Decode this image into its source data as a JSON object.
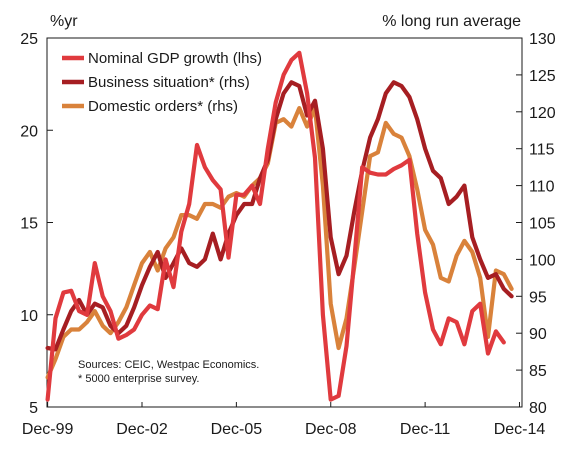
{
  "chart_data": {
    "type": "line",
    "left_axis_unit": "%yr",
    "right_axis_unit": "% long run average",
    "x_tick_labels": [
      "Dec-99",
      "Dec-02",
      "Dec-05",
      "Dec-08",
      "Dec-11",
      "Dec-14"
    ],
    "x_tick_years": [
      1999.92,
      2002.92,
      2005.92,
      2008.92,
      2011.92,
      2014.92
    ],
    "xlim": [
      1999.9,
      2015.0
    ],
    "left_ylim": [
      5,
      25
    ],
    "left_yticks": [
      5,
      10,
      15,
      20,
      25
    ],
    "right_ylim": [
      80,
      130
    ],
    "right_yticks": [
      80,
      85,
      90,
      95,
      100,
      105,
      110,
      115,
      120,
      125,
      130
    ],
    "grid": false,
    "legend_position": "top-left",
    "notes": [
      "Sources: CEIC, Westpac Economics.",
      "* 5000 enterprise survey."
    ],
    "series": [
      {
        "name": "Nominal GDP growth (lhs)",
        "axis": "left",
        "color": "#e03a3e",
        "points": [
          [
            1999.92,
            5.4
          ],
          [
            2000.17,
            9.8
          ],
          [
            2000.42,
            11.2
          ],
          [
            2000.67,
            11.3
          ],
          [
            2000.92,
            10.2
          ],
          [
            2001.17,
            10.0
          ],
          [
            2001.42,
            12.8
          ],
          [
            2001.67,
            11.0
          ],
          [
            2001.92,
            10.2
          ],
          [
            2002.17,
            8.7
          ],
          [
            2002.42,
            8.9
          ],
          [
            2002.67,
            9.2
          ],
          [
            2002.92,
            10.0
          ],
          [
            2003.17,
            10.5
          ],
          [
            2003.42,
            10.3
          ],
          [
            2003.67,
            13.0
          ],
          [
            2003.92,
            11.5
          ],
          [
            2004.17,
            14.5
          ],
          [
            2004.42,
            16.0
          ],
          [
            2004.67,
            19.2
          ],
          [
            2004.92,
            18.0
          ],
          [
            2005.17,
            17.3
          ],
          [
            2005.42,
            16.8
          ],
          [
            2005.67,
            13.1
          ],
          [
            2005.92,
            16.5
          ],
          [
            2006.17,
            16.5
          ],
          [
            2006.42,
            17.0
          ],
          [
            2006.67,
            16.0
          ],
          [
            2006.92,
            19.0
          ],
          [
            2007.17,
            21.5
          ],
          [
            2007.42,
            23.0
          ],
          [
            2007.67,
            23.8
          ],
          [
            2007.92,
            24.2
          ],
          [
            2008.17,
            22.0
          ],
          [
            2008.42,
            18.5
          ],
          [
            2008.67,
            10.0
          ],
          [
            2008.92,
            5.4
          ],
          [
            2009.17,
            5.6
          ],
          [
            2009.42,
            8.3
          ],
          [
            2009.67,
            13.0
          ],
          [
            2009.92,
            18.0
          ],
          [
            2010.17,
            17.7
          ],
          [
            2010.42,
            17.6
          ],
          [
            2010.67,
            17.6
          ],
          [
            2010.92,
            17.9
          ],
          [
            2011.17,
            18.1
          ],
          [
            2011.42,
            18.4
          ],
          [
            2011.67,
            14.4
          ],
          [
            2011.92,
            11.2
          ],
          [
            2012.17,
            9.2
          ],
          [
            2012.42,
            8.4
          ],
          [
            2012.67,
            9.8
          ],
          [
            2012.92,
            9.6
          ],
          [
            2013.17,
            8.4
          ],
          [
            2013.42,
            10.2
          ],
          [
            2013.67,
            10.6
          ],
          [
            2013.92,
            7.9
          ],
          [
            2014.17,
            9.1
          ],
          [
            2014.42,
            8.5
          ]
        ]
      },
      {
        "name": "Business situation* (rhs)",
        "axis": "right",
        "color": "#a61e22",
        "points": [
          [
            1999.92,
            88.0
          ],
          [
            2000.17,
            87.8
          ],
          [
            2000.42,
            90.5
          ],
          [
            2000.67,
            93.0
          ],
          [
            2000.92,
            94.5
          ],
          [
            2001.17,
            92.5
          ],
          [
            2001.42,
            94.0
          ],
          [
            2001.67,
            93.5
          ],
          [
            2001.92,
            91.0
          ],
          [
            2002.17,
            90.0
          ],
          [
            2002.42,
            91.0
          ],
          [
            2002.67,
            93.5
          ],
          [
            2002.92,
            96.5
          ],
          [
            2003.17,
            99.0
          ],
          [
            2003.42,
            101.0
          ],
          [
            2003.67,
            97.5
          ],
          [
            2003.92,
            99.5
          ],
          [
            2004.17,
            101.5
          ],
          [
            2004.42,
            99.5
          ],
          [
            2004.67,
            99.0
          ],
          [
            2004.92,
            100.0
          ],
          [
            2005.17,
            103.5
          ],
          [
            2005.42,
            100.0
          ],
          [
            2005.67,
            103.5
          ],
          [
            2005.92,
            106.0
          ],
          [
            2006.17,
            107.5
          ],
          [
            2006.42,
            107.5
          ],
          [
            2006.67,
            111.0
          ],
          [
            2006.92,
            113.5
          ],
          [
            2007.17,
            119.0
          ],
          [
            2007.42,
            122.5
          ],
          [
            2007.67,
            124.0
          ],
          [
            2007.92,
            123.5
          ],
          [
            2008.17,
            119.5
          ],
          [
            2008.42,
            121.5
          ],
          [
            2008.67,
            115.0
          ],
          [
            2008.92,
            103.0
          ],
          [
            2009.17,
            98.0
          ],
          [
            2009.42,
            100.5
          ],
          [
            2009.67,
            106.5
          ],
          [
            2009.92,
            112.0
          ],
          [
            2010.17,
            116.5
          ],
          [
            2010.42,
            119.0
          ],
          [
            2010.67,
            122.5
          ],
          [
            2010.92,
            124.0
          ],
          [
            2011.17,
            123.5
          ],
          [
            2011.42,
            122.0
          ],
          [
            2011.67,
            119.0
          ],
          [
            2011.92,
            115.0
          ],
          [
            2012.17,
            112.0
          ],
          [
            2012.42,
            111.0
          ],
          [
            2012.67,
            107.5
          ],
          [
            2012.92,
            108.5
          ],
          [
            2013.17,
            110.0
          ],
          [
            2013.42,
            103.0
          ],
          [
            2013.67,
            100.0
          ],
          [
            2013.92,
            97.5
          ],
          [
            2014.17,
            98.0
          ],
          [
            2014.42,
            96.0
          ],
          [
            2014.67,
            95.0
          ]
        ]
      },
      {
        "name": "Domestic orders* (rhs)",
        "axis": "right",
        "color": "#d9823b",
        "points": [
          [
            1999.92,
            84.0
          ],
          [
            2000.17,
            86.5
          ],
          [
            2000.42,
            89.5
          ],
          [
            2000.67,
            90.5
          ],
          [
            2000.92,
            90.5
          ],
          [
            2001.17,
            91.5
          ],
          [
            2001.42,
            93.0
          ],
          [
            2001.67,
            91.0
          ],
          [
            2001.92,
            90.0
          ],
          [
            2002.17,
            91.5
          ],
          [
            2002.42,
            93.5
          ],
          [
            2002.67,
            96.5
          ],
          [
            2002.92,
            99.5
          ],
          [
            2003.17,
            101.0
          ],
          [
            2003.42,
            98.5
          ],
          [
            2003.67,
            101.5
          ],
          [
            2003.92,
            103.0
          ],
          [
            2004.17,
            106.0
          ],
          [
            2004.42,
            106.0
          ],
          [
            2004.67,
            105.5
          ],
          [
            2004.92,
            107.5
          ],
          [
            2005.17,
            107.5
          ],
          [
            2005.42,
            107.0
          ],
          [
            2005.67,
            108.5
          ],
          [
            2005.92,
            109.0
          ],
          [
            2006.17,
            108.5
          ],
          [
            2006.42,
            110.0
          ],
          [
            2006.67,
            111.0
          ],
          [
            2006.92,
            113.0
          ],
          [
            2007.17,
            118.5
          ],
          [
            2007.42,
            119.0
          ],
          [
            2007.67,
            118.0
          ],
          [
            2007.92,
            120.5
          ],
          [
            2008.17,
            118.0
          ],
          [
            2008.42,
            120.5
          ],
          [
            2008.67,
            110.0
          ],
          [
            2008.92,
            94.0
          ],
          [
            2009.17,
            88.0
          ],
          [
            2009.42,
            92.0
          ],
          [
            2009.67,
            99.0
          ],
          [
            2009.92,
            106.5
          ],
          [
            2010.17,
            114.0
          ],
          [
            2010.42,
            114.5
          ],
          [
            2010.67,
            118.5
          ],
          [
            2010.92,
            117.0
          ],
          [
            2011.17,
            116.5
          ],
          [
            2011.42,
            114.0
          ],
          [
            2011.67,
            109.5
          ],
          [
            2011.92,
            104.0
          ],
          [
            2012.17,
            102.0
          ],
          [
            2012.42,
            97.5
          ],
          [
            2012.67,
            97.0
          ],
          [
            2012.92,
            100.5
          ],
          [
            2013.17,
            102.5
          ],
          [
            2013.42,
            101.0
          ],
          [
            2013.67,
            97.5
          ],
          [
            2013.92,
            89.5
          ],
          [
            2014.17,
            98.5
          ],
          [
            2014.42,
            98.0
          ],
          [
            2014.67,
            96.0
          ]
        ]
      }
    ]
  }
}
